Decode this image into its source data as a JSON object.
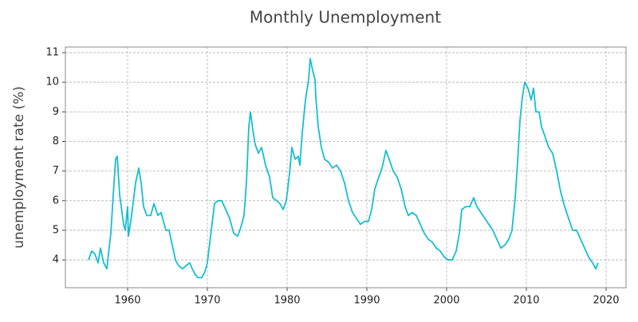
{
  "chart_data": {
    "type": "line",
    "title": "Monthly Unemployment",
    "ylabel": "unemployment rate (%)",
    "x": [
      1955.1,
      1955.5,
      1955.9,
      1956.3,
      1956.6,
      1957.0,
      1957.4,
      1957.6,
      1957.9,
      1958.2,
      1958.5,
      1958.7,
      1959.0,
      1959.5,
      1959.7,
      1960.0,
      1960.1,
      1960.5,
      1961.0,
      1961.4,
      1961.7,
      1962.0,
      1962.4,
      1962.9,
      1963.3,
      1963.8,
      1964.2,
      1964.8,
      1965.2,
      1965.6,
      1966.0,
      1966.4,
      1966.9,
      1967.3,
      1967.8,
      1968.1,
      1968.5,
      1968.8,
      1969.3,
      1969.7,
      1970.0,
      1970.4,
      1970.9,
      1971.3,
      1971.8,
      1972.3,
      1972.8,
      1973.3,
      1973.8,
      1974.2,
      1974.6,
      1974.9,
      1975.2,
      1975.4,
      1975.7,
      1976.0,
      1976.4,
      1976.8,
      1977.3,
      1977.8,
      1978.2,
      1978.7,
      1979.1,
      1979.5,
      1979.9,
      1980.3,
      1980.6,
      1981.0,
      1981.4,
      1981.6,
      1981.9,
      1982.3,
      1982.7,
      1982.9,
      1983.2,
      1983.5,
      1983.6,
      1983.9,
      1984.3,
      1984.7,
      1985.2,
      1985.7,
      1986.2,
      1986.7,
      1987.2,
      1987.7,
      1988.2,
      1988.7,
      1989.2,
      1989.7,
      1990.2,
      1990.6,
      1991.0,
      1991.5,
      1991.9,
      1992.4,
      1992.8,
      1993.3,
      1993.8,
      1994.3,
      1994.8,
      1995.2,
      1995.7,
      1996.2,
      1996.7,
      1997.2,
      1997.7,
      1998.2,
      1998.7,
      1999.2,
      1999.7,
      2000.2,
      2000.7,
      2001.2,
      2001.6,
      2001.9,
      2002.4,
      2002.9,
      2003.4,
      2003.8,
      2004.3,
      2004.8,
      2005.3,
      2005.8,
      2006.3,
      2006.8,
      2007.3,
      2007.8,
      2008.2,
      2008.6,
      2008.9,
      2009.2,
      2009.5,
      2009.8,
      2010.2,
      2010.6,
      2010.9,
      2011.2,
      2011.6,
      2011.9,
      2012.3,
      2012.8,
      2013.3,
      2013.8,
      2014.3,
      2014.8,
      2015.3,
      2015.8,
      2016.3,
      2016.8,
      2017.3,
      2017.8,
      2018.3,
      2018.7,
      2019.0
    ],
    "values": [
      4.0,
      4.3,
      4.2,
      3.9,
      4.4,
      3.9,
      3.7,
      4.2,
      4.9,
      6.2,
      7.4,
      7.5,
      6.2,
      5.2,
      5.0,
      5.8,
      4.8,
      5.5,
      6.6,
      7.1,
      6.6,
      5.8,
      5.5,
      5.5,
      5.9,
      5.5,
      5.6,
      5.0,
      5.0,
      4.5,
      4.0,
      3.8,
      3.7,
      3.8,
      3.9,
      3.7,
      3.5,
      3.4,
      3.4,
      3.6,
      3.9,
      4.8,
      5.9,
      6.0,
      6.0,
      5.7,
      5.4,
      4.9,
      4.8,
      5.1,
      5.5,
      6.6,
      8.5,
      9.0,
      8.4,
      7.9,
      7.6,
      7.8,
      7.2,
      6.8,
      6.1,
      6.0,
      5.9,
      5.7,
      6.0,
      6.9,
      7.8,
      7.4,
      7.5,
      7.2,
      8.3,
      9.4,
      10.1,
      10.8,
      10.4,
      10.1,
      9.5,
      8.5,
      7.8,
      7.4,
      7.3,
      7.1,
      7.2,
      7.0,
      6.6,
      6.0,
      5.6,
      5.4,
      5.2,
      5.3,
      5.3,
      5.7,
      6.4,
      6.8,
      7.1,
      7.7,
      7.4,
      7.0,
      6.8,
      6.4,
      5.8,
      5.5,
      5.6,
      5.5,
      5.2,
      4.9,
      4.7,
      4.6,
      4.4,
      4.3,
      4.1,
      4.0,
      4.0,
      4.3,
      4.9,
      5.7,
      5.8,
      5.8,
      6.1,
      5.8,
      5.6,
      5.4,
      5.2,
      5.0,
      4.7,
      4.4,
      4.5,
      4.7,
      5.0,
      6.1,
      7.3,
      8.7,
      9.5,
      10.0,
      9.8,
      9.4,
      9.8,
      9.0,
      9.0,
      8.5,
      8.2,
      7.8,
      7.6,
      7.0,
      6.3,
      5.8,
      5.4,
      5.0,
      5.0,
      4.7,
      4.4,
      4.1,
      3.9,
      3.7,
      3.9
    ],
    "color": "#17becf",
    "xlim": [
      1952.2,
      2022.5
    ],
    "xticks": [
      1960,
      1970,
      1980,
      1990,
      2000,
      2010,
      2020
    ],
    "ylim": [
      3.06,
      11.19
    ],
    "yticks": [
      4,
      5,
      6,
      7,
      8,
      9,
      10,
      11
    ],
    "grid": true
  }
}
